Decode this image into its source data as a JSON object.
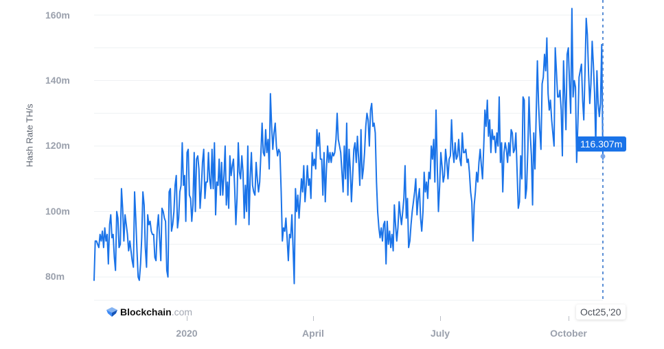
{
  "chart_data": {
    "type": "line",
    "title": "",
    "xlabel": "",
    "ylabel": "Hash Rate TH/s",
    "ylim": [
      72,
      162
    ],
    "y_ticks": [
      "80m",
      "100m",
      "120m",
      "140m",
      "160m"
    ],
    "x_ticks": [
      "2020",
      "April",
      "July",
      "October"
    ],
    "grid": true,
    "legend": null,
    "series": [
      {
        "name": "Hash Rate",
        "color": "#1a73e8",
        "x_start": "Oct 2019",
        "x_end": "Oct 25, 2020",
        "values": [
          79,
          91,
          91,
          90,
          89,
          93,
          91,
          94,
          89,
          95,
          91,
          93,
          84,
          96,
          99,
          92,
          93,
          86,
          82,
          100,
          98,
          89,
          90,
          107,
          101,
          91,
          99,
          96,
          93,
          88,
          91,
          88,
          85,
          83,
          106,
          98,
          88,
          80,
          79,
          84,
          92,
          106,
          102,
          89,
          83,
          99,
          96,
          97,
          94,
          93,
          93,
          86,
          85,
          95,
          99,
          92,
          85,
          101,
          100,
          98,
          97,
          82,
          80,
          106,
          107,
          94,
          96,
          100,
          108,
          111,
          95,
          98,
          106,
          108,
          121,
          108,
          111,
          97,
          118,
          119,
          105,
          104,
          97,
          102,
          118,
          100,
          116,
          117,
          113,
          101,
          107,
          115,
          119,
          104,
          109,
          109,
          118,
          110,
          107,
          119,
          107,
          121,
          99,
          109,
          108,
          116,
          105,
          115,
          105,
          111,
          120,
          102,
          109,
          101,
          117,
          111,
          114,
          116,
          107,
          96,
          104,
          121,
          112,
          110,
          117,
          112,
          98,
          108,
          100,
          120,
          96,
          110,
          118,
          108,
          106,
          105,
          115,
          110,
          106,
          109,
          118,
          127,
          118,
          117,
          125,
          118,
          122,
          113,
          136,
          126,
          119,
          124,
          127,
          120,
          117,
          119,
          118,
          106,
          91,
          95,
          94,
          98,
          92,
          85,
          93,
          92,
          99,
          89,
          78,
          107,
          100,
          105,
          98,
          104,
          110,
          106,
          114,
          103,
          108,
          114,
          108,
          110,
          104,
          118,
          114,
          116,
          113,
          125,
          120,
          124,
          116,
          116,
          105,
          118,
          103,
          113,
          120,
          115,
          118,
          115,
          118,
          117,
          118,
          122,
          130,
          122,
          120,
          118,
          112,
          106,
          120,
          110,
          127,
          105,
          119,
          113,
          103,
          111,
          119,
          121,
          115,
          123,
          116,
          108,
          125,
          110,
          113,
          118,
          126,
          130,
          128,
          120,
          131,
          133,
          126,
          127,
          124,
          109,
          100,
          95,
          92,
          95,
          91,
          96,
          97,
          84,
          97,
          90,
          94,
          89,
          93,
          88,
          102,
          96,
          91,
          95,
          103,
          99,
          96,
          100,
          104,
          114,
          98,
          104,
          89,
          91,
          96,
          100,
          103,
          106,
          110,
          99,
          104,
          107,
          98,
          94,
          100,
          112,
          106,
          109,
          104,
          112,
          110,
          120,
          116,
          122,
          109,
          131,
          114,
          100,
          108,
          118,
          114,
          109,
          111,
          119,
          115,
          110,
          116,
          117,
          128,
          119,
          115,
          121,
          116,
          117,
          122,
          116,
          114,
          124,
          118,
          118,
          119,
          115,
          116,
          112,
          106,
          103,
          91,
          102,
          106,
          112,
          109,
          115,
          119,
          114,
          110,
          120,
          131,
          126,
          134,
          123,
          128,
          118,
          125,
          122,
          123,
          118,
          124,
          120,
          135,
          115,
          121,
          106,
          118,
          121,
          119,
          115,
          121,
          117,
          125,
          124,
          118,
          119,
          124,
          112,
          101,
          103,
          117,
          110,
          135,
          134,
          104,
          107,
          119,
          135,
          124,
          117,
          102,
          124,
          113,
          129,
          146,
          133,
          125,
          119,
          139,
          141,
          148,
          143,
          153,
          136,
          131,
          134,
          128,
          124,
          120,
          150,
          143,
          135,
          135,
          137,
          131,
          117,
          146,
          135,
          125,
          148,
          150,
          139,
          130,
          162,
          135,
          140,
          138,
          115,
          127,
          141,
          143,
          145,
          134,
          128,
          143,
          159,
          154,
          142,
          133,
          139,
          152,
          145,
          136,
          120,
          143,
          133,
          129,
          133,
          151,
          116
        ]
      }
    ],
    "highlight": {
      "date_label": "Oct25,'20",
      "value_label": "116.307m"
    },
    "watermark": {
      "brand": "Blockchain",
      "suffix": ".com"
    }
  }
}
